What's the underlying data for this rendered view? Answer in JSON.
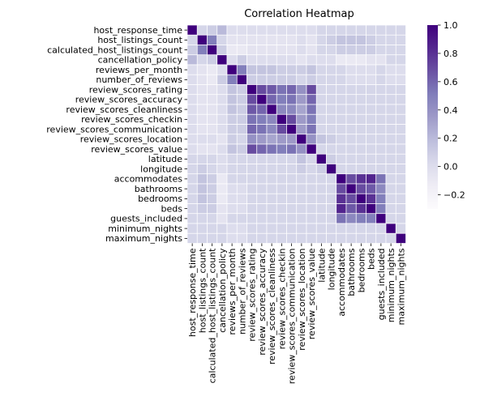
{
  "chart_data": {
    "type": "heatmap",
    "title": "Correlation Heatmap",
    "labels": [
      "host_response_time",
      "host_listings_count",
      "calculated_host_listings_count",
      "cancellation_policy",
      "reviews_per_month",
      "number_of_reviews",
      "review_scores_rating",
      "review_scores_accuracy",
      "review_scores_cleanliness",
      "review_scores_checkin",
      "review_scores_communication",
      "review_scores_location",
      "review_scores_value",
      "latitude",
      "longitude",
      "accommodates",
      "bathrooms",
      "bedrooms",
      "beds",
      "guests_included",
      "minimum_nights",
      "maximum_nights"
    ],
    "matrix": [
      [
        1.0,
        0.05,
        0.1,
        0.2,
        0.0,
        0.0,
        0.0,
        0.0,
        0.0,
        0.0,
        0.0,
        0.0,
        0.0,
        0.05,
        0.05,
        0.05,
        0.05,
        0.05,
        0.05,
        0.05,
        0.05,
        0.05
      ],
      [
        0.05,
        1.0,
        0.5,
        0.05,
        -0.05,
        -0.05,
        -0.05,
        -0.05,
        -0.05,
        -0.05,
        -0.05,
        0.0,
        -0.05,
        0.05,
        0.1,
        0.15,
        0.15,
        0.15,
        0.1,
        0.05,
        0.05,
        0.05
      ],
      [
        0.1,
        0.5,
        1.0,
        0.1,
        -0.1,
        -0.1,
        -0.05,
        -0.05,
        -0.05,
        -0.05,
        -0.05,
        0.0,
        -0.05,
        0.05,
        0.05,
        0.1,
        0.1,
        0.1,
        0.1,
        0.05,
        0.05,
        0.05
      ],
      [
        0.2,
        0.05,
        0.1,
        1.0,
        0.0,
        0.1,
        0.0,
        0.0,
        0.0,
        0.0,
        0.0,
        -0.05,
        0.0,
        0.0,
        0.0,
        -0.1,
        -0.1,
        -0.1,
        -0.05,
        -0.05,
        0.05,
        0.05
      ],
      [
        0.0,
        -0.05,
        -0.1,
        0.0,
        1.0,
        0.5,
        0.15,
        0.15,
        0.15,
        0.1,
        0.1,
        0.1,
        0.15,
        0.05,
        0.05,
        0.05,
        0.0,
        0.0,
        0.0,
        0.05,
        0.0,
        0.0
      ],
      [
        0.0,
        -0.05,
        -0.1,
        0.1,
        0.5,
        1.0,
        0.1,
        0.1,
        0.1,
        0.1,
        0.1,
        0.05,
        0.1,
        0.05,
        0.05,
        0.05,
        0.0,
        0.0,
        0.0,
        0.05,
        0.0,
        0.0
      ],
      [
        0.0,
        -0.05,
        -0.05,
        0.0,
        0.15,
        0.1,
        1.0,
        0.7,
        0.65,
        0.55,
        0.6,
        0.4,
        0.7,
        0.05,
        0.05,
        0.05,
        0.05,
        0.05,
        0.05,
        0.05,
        0.05,
        0.05
      ],
      [
        0.0,
        -0.05,
        -0.05,
        0.0,
        0.15,
        0.1,
        0.7,
        1.0,
        0.6,
        0.5,
        0.55,
        0.35,
        0.6,
        0.05,
        0.05,
        0.05,
        0.05,
        0.05,
        0.05,
        0.05,
        0.05,
        0.05
      ],
      [
        0.0,
        -0.05,
        -0.05,
        0.0,
        0.15,
        0.1,
        0.65,
        0.6,
        1.0,
        0.45,
        0.45,
        0.3,
        0.55,
        0.05,
        0.05,
        0.05,
        0.05,
        0.05,
        0.05,
        0.05,
        0.05,
        0.05
      ],
      [
        0.0,
        -0.05,
        -0.05,
        0.0,
        0.1,
        0.1,
        0.55,
        0.5,
        0.45,
        1.0,
        0.7,
        0.35,
        0.5,
        0.05,
        0.05,
        0.05,
        0.05,
        0.05,
        0.05,
        0.05,
        0.05,
        0.05
      ],
      [
        0.0,
        -0.05,
        -0.05,
        0.0,
        0.1,
        0.1,
        0.6,
        0.55,
        0.45,
        0.7,
        1.0,
        0.35,
        0.55,
        0.05,
        0.05,
        0.05,
        0.05,
        0.05,
        0.05,
        0.05,
        0.05,
        0.05
      ],
      [
        0.0,
        0.0,
        0.0,
        -0.05,
        0.1,
        0.05,
        0.4,
        0.35,
        0.3,
        0.35,
        0.35,
        1.0,
        0.4,
        0.15,
        0.1,
        0.05,
        0.05,
        0.05,
        0.05,
        0.05,
        0.05,
        0.05
      ],
      [
        0.0,
        -0.05,
        -0.05,
        0.0,
        0.15,
        0.1,
        0.7,
        0.6,
        0.55,
        0.5,
        0.55,
        0.4,
        1.0,
        0.05,
        0.05,
        0.05,
        0.05,
        0.05,
        0.05,
        0.05,
        0.05,
        0.05
      ],
      [
        0.05,
        0.05,
        0.05,
        0.0,
        0.05,
        0.05,
        0.05,
        0.05,
        0.05,
        0.05,
        0.05,
        0.15,
        0.05,
        1.0,
        0.1,
        0.05,
        0.05,
        0.05,
        0.05,
        0.05,
        0.05,
        0.05
      ],
      [
        0.05,
        0.1,
        0.05,
        0.0,
        0.05,
        0.05,
        0.05,
        0.05,
        0.05,
        0.05,
        0.05,
        0.1,
        0.05,
        0.1,
        1.0,
        0.05,
        0.05,
        0.05,
        0.05,
        0.05,
        0.05,
        0.05
      ],
      [
        0.05,
        0.15,
        0.1,
        -0.1,
        0.05,
        0.05,
        0.05,
        0.05,
        0.05,
        0.05,
        0.05,
        0.05,
        0.05,
        0.05,
        0.05,
        1.0,
        0.7,
        0.8,
        0.85,
        0.55,
        0.05,
        0.05
      ],
      [
        0.05,
        0.15,
        0.1,
        -0.1,
        0.0,
        0.0,
        0.05,
        0.05,
        0.05,
        0.05,
        0.05,
        0.05,
        0.05,
        0.05,
        0.05,
        0.7,
        1.0,
        0.7,
        0.65,
        0.45,
        0.05,
        0.05
      ],
      [
        0.05,
        0.15,
        0.1,
        -0.1,
        0.0,
        0.0,
        0.05,
        0.05,
        0.05,
        0.05,
        0.05,
        0.05,
        0.05,
        0.05,
        0.05,
        0.8,
        0.7,
        1.0,
        0.8,
        0.5,
        0.05,
        0.05
      ],
      [
        0.05,
        0.1,
        0.1,
        -0.05,
        0.0,
        0.0,
        0.05,
        0.05,
        0.05,
        0.05,
        0.05,
        0.05,
        0.05,
        0.05,
        0.05,
        0.85,
        0.65,
        0.8,
        1.0,
        0.5,
        0.05,
        0.05
      ],
      [
        0.05,
        0.05,
        0.05,
        -0.05,
        0.05,
        0.05,
        0.05,
        0.05,
        0.05,
        0.05,
        0.05,
        0.05,
        0.05,
        0.05,
        0.05,
        0.55,
        0.45,
        0.5,
        0.5,
        1.0,
        0.05,
        0.05
      ],
      [
        0.05,
        0.05,
        0.05,
        0.05,
        0.0,
        0.0,
        0.05,
        0.05,
        0.05,
        0.05,
        0.05,
        0.05,
        0.05,
        0.05,
        0.05,
        0.05,
        0.05,
        0.05,
        0.05,
        0.05,
        1.0,
        0.05
      ],
      [
        0.05,
        0.05,
        0.05,
        0.05,
        0.0,
        0.0,
        0.05,
        0.05,
        0.05,
        0.05,
        0.05,
        0.05,
        0.05,
        0.05,
        0.05,
        0.05,
        0.05,
        0.05,
        0.05,
        0.05,
        0.05,
        1.0
      ]
    ],
    "vmin": -0.3,
    "vmax": 1.0,
    "colormap": "Purples",
    "colorbar_ticks": [
      1.0,
      0.8,
      0.6,
      0.4,
      0.2,
      0.0,
      -0.2
    ],
    "colorbar_tick_labels": [
      "1.0",
      "0.8",
      "0.6",
      "0.4",
      "0.2",
      "0.0",
      "−0.2"
    ],
    "cell_border_color": "#ffffff",
    "colorscale_light": "#fcfbfd",
    "colorscale_dark": "#3f007d"
  }
}
